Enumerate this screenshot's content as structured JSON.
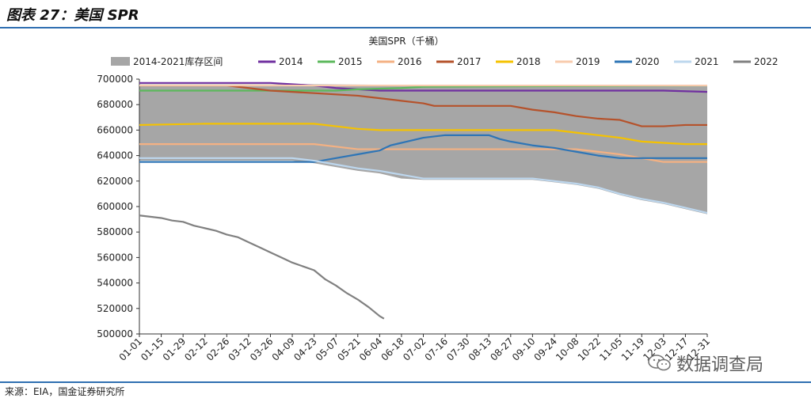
{
  "figure": {
    "title": "图表 27：美国 SPR",
    "source": "来源：EIA，国金证券研究所",
    "watermark": "数据调查局"
  },
  "chart_data": {
    "type": "area",
    "title": "美国SPR（千桶）",
    "xlabel": "",
    "ylabel": "",
    "ylim": [
      500000,
      700000
    ],
    "yticks": [
      500000,
      520000,
      540000,
      560000,
      580000,
      600000,
      620000,
      640000,
      660000,
      680000,
      700000
    ],
    "xticks": [
      "01-01",
      "01-15",
      "01-29",
      "02-12",
      "02-26",
      "03-12",
      "03-26",
      "04-09",
      "04-23",
      "05-07",
      "05-21",
      "06-04",
      "06-18",
      "07-02",
      "07-16",
      "07-30",
      "08-13",
      "08-27",
      "09-10",
      "09-24",
      "10-08",
      "10-22",
      "11-05",
      "11-19",
      "12-03",
      "12-17",
      "12-31"
    ],
    "grid": false,
    "legend_position": "top",
    "range_band": {
      "name": "2014-2021库存区间",
      "color": "#a6a6a6",
      "upper": [
        [
          0,
          696000
        ],
        [
          8,
          696000
        ],
        [
          16,
          695000
        ],
        [
          26,
          695000
        ]
      ],
      "lower": [
        [
          0,
          636000
        ],
        [
          7,
          636000
        ],
        [
          8,
          634000
        ],
        [
          9,
          631000
        ],
        [
          10,
          628000
        ],
        [
          11,
          626000
        ],
        [
          12,
          622000
        ],
        [
          13,
          621000
        ],
        [
          18,
          621000
        ],
        [
          19,
          619000
        ],
        [
          20,
          617000
        ],
        [
          21,
          614000
        ],
        [
          22,
          609000
        ],
        [
          23,
          605000
        ],
        [
          24,
          602000
        ],
        [
          25,
          598000
        ],
        [
          26,
          594000
        ]
      ]
    },
    "series": [
      {
        "name": "2014",
        "color": "#7030a0",
        "points": [
          [
            0,
            697000
          ],
          [
            6,
            697000
          ],
          [
            7,
            696000
          ],
          [
            8,
            695000
          ],
          [
            9,
            693000
          ],
          [
            10,
            692000
          ],
          [
            11,
            691000
          ],
          [
            24,
            691000
          ],
          [
            26,
            690000
          ]
        ]
      },
      {
        "name": "2015",
        "color": "#5cb85c",
        "points": [
          [
            0,
            691000
          ],
          [
            9,
            691000
          ],
          [
            10,
            692000
          ],
          [
            12,
            693000
          ],
          [
            13,
            694000
          ],
          [
            26,
            695000
          ]
        ]
      },
      {
        "name": "2016",
        "color": "#f4b183",
        "points": [
          [
            0,
            649000
          ],
          [
            8,
            649000
          ],
          [
            9,
            647000
          ],
          [
            10,
            645000
          ],
          [
            20,
            645000
          ],
          [
            21,
            643000
          ],
          [
            22,
            641000
          ],
          [
            23,
            638000
          ],
          [
            24,
            635000
          ],
          [
            26,
            635000
          ]
        ]
      },
      {
        "name": "2017",
        "color": "#b5522b",
        "points": [
          [
            0,
            695000
          ],
          [
            4,
            695000
          ],
          [
            5,
            693000
          ],
          [
            6,
            691000
          ],
          [
            7,
            690000
          ],
          [
            8,
            689000
          ],
          [
            9,
            688000
          ],
          [
            10,
            687000
          ],
          [
            11,
            685000
          ],
          [
            12,
            683000
          ],
          [
            13,
            681000
          ],
          [
            13.5,
            679000
          ],
          [
            17,
            679000
          ],
          [
            18,
            676000
          ],
          [
            19,
            674000
          ],
          [
            20,
            671000
          ],
          [
            21,
            669000
          ],
          [
            22,
            668000
          ],
          [
            23,
            663000
          ],
          [
            24,
            663000
          ],
          [
            25,
            664000
          ],
          [
            26,
            664000
          ]
        ]
      },
      {
        "name": "2018",
        "color": "#f5c200",
        "points": [
          [
            0,
            664000
          ],
          [
            3,
            665000
          ],
          [
            8,
            665000
          ],
          [
            9,
            663000
          ],
          [
            10,
            661000
          ],
          [
            11,
            660000
          ],
          [
            19,
            660000
          ],
          [
            20,
            658000
          ],
          [
            21,
            656000
          ],
          [
            22,
            654000
          ],
          [
            23,
            651000
          ],
          [
            24,
            650000
          ],
          [
            25,
            649000
          ],
          [
            26,
            649000
          ]
        ]
      },
      {
        "name": "2019",
        "color": "#f8cbad",
        "points": [
          [
            0,
            695000
          ],
          [
            26,
            695000
          ]
        ]
      },
      {
        "name": "2020",
        "color": "#2e75b6",
        "points": [
          [
            0,
            635000
          ],
          [
            8,
            635000
          ],
          [
            9,
            638000
          ],
          [
            10,
            641000
          ],
          [
            11,
            644000
          ],
          [
            11.5,
            648000
          ],
          [
            12,
            650000
          ],
          [
            13,
            654000
          ],
          [
            14,
            656000
          ],
          [
            16,
            656000
          ],
          [
            16.5,
            653000
          ],
          [
            17,
            651000
          ],
          [
            18,
            648000
          ],
          [
            19,
            646000
          ],
          [
            20,
            643000
          ],
          [
            21,
            640000
          ],
          [
            22,
            638000
          ],
          [
            26,
            638000
          ]
        ]
      },
      {
        "name": "2021",
        "color": "#bdd7ee",
        "points": [
          [
            0,
            638000
          ],
          [
            7,
            638000
          ],
          [
            8,
            636000
          ],
          [
            9,
            633000
          ],
          [
            10,
            630000
          ],
          [
            11,
            628000
          ],
          [
            12,
            625000
          ],
          [
            13,
            622000
          ],
          [
            18,
            622000
          ],
          [
            19,
            620000
          ],
          [
            20,
            618000
          ],
          [
            21,
            615000
          ],
          [
            22,
            610000
          ],
          [
            23,
            606000
          ],
          [
            24,
            603000
          ],
          [
            25,
            599000
          ],
          [
            26,
            595000
          ]
        ]
      },
      {
        "name": "2022",
        "color": "#808080",
        "points": [
          [
            0,
            593000
          ],
          [
            0.5,
            592000
          ],
          [
            1,
            591000
          ],
          [
            1.5,
            589000
          ],
          [
            2,
            588000
          ],
          [
            2.5,
            585000
          ],
          [
            3,
            583000
          ],
          [
            3.5,
            581000
          ],
          [
            4,
            578000
          ],
          [
            4.5,
            576000
          ],
          [
            5,
            572000
          ],
          [
            5.5,
            568000
          ],
          [
            6,
            564000
          ],
          [
            6.5,
            560000
          ],
          [
            7,
            556000
          ],
          [
            7.5,
            553000
          ],
          [
            8,
            550000
          ],
          [
            8.5,
            543000
          ],
          [
            9,
            538000
          ],
          [
            9.5,
            532000
          ],
          [
            10,
            527000
          ],
          [
            10.5,
            521000
          ],
          [
            11,
            514000
          ],
          [
            11.2,
            512000
          ]
        ]
      }
    ]
  }
}
